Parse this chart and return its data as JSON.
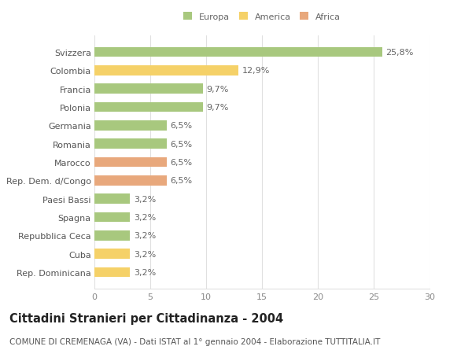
{
  "categories": [
    "Svizzera",
    "Colombia",
    "Francia",
    "Polonia",
    "Germania",
    "Romania",
    "Marocco",
    "Rep. Dem. d/Congo",
    "Paesi Bassi",
    "Spagna",
    "Repubblica Ceca",
    "Cuba",
    "Rep. Dominicana"
  ],
  "values": [
    25.8,
    12.9,
    9.7,
    9.7,
    6.5,
    6.5,
    6.5,
    6.5,
    3.2,
    3.2,
    3.2,
    3.2,
    3.2
  ],
  "labels": [
    "25,8%",
    "12,9%",
    "9,7%",
    "9,7%",
    "6,5%",
    "6,5%",
    "6,5%",
    "6,5%",
    "3,2%",
    "3,2%",
    "3,2%",
    "3,2%",
    "3,2%"
  ],
  "continents": [
    "Europa",
    "America",
    "Europa",
    "Europa",
    "Europa",
    "Europa",
    "Africa",
    "Africa",
    "Europa",
    "Europa",
    "Europa",
    "America",
    "America"
  ],
  "colors": {
    "Europa": "#a8c87e",
    "America": "#f5d168",
    "Africa": "#e8a87c"
  },
  "title": "Cittadini Stranieri per Cittadinanza - 2004",
  "subtitle": "COMUNE DI CREMENAGA (VA) - Dati ISTAT al 1° gennaio 2004 - Elaborazione TUTTITALIA.IT",
  "xlim": [
    0,
    30
  ],
  "xticks": [
    0,
    5,
    10,
    15,
    20,
    25,
    30
  ],
  "bar_height": 0.55,
  "background_color": "#ffffff",
  "grid_color": "#e0e0e0",
  "label_fontsize": 8.0,
  "tick_fontsize": 8.0,
  "title_fontsize": 10.5,
  "subtitle_fontsize": 7.5
}
